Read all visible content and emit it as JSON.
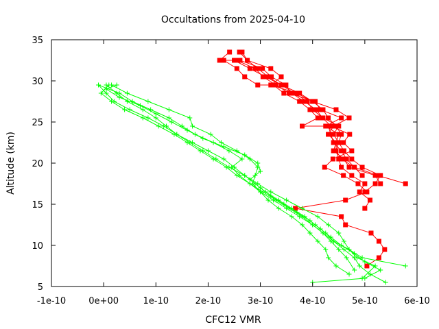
{
  "chart_data": {
    "type": "scatter",
    "title": "Occultations from 2025-04-10",
    "xlabel": "CFC12 VMR",
    "ylabel": "Altitude (km)",
    "xlim": [
      -1e-10,
      6e-10
    ],
    "ylim": [
      5,
      35
    ],
    "xticks": [
      -1e-10,
      0,
      1e-10,
      2e-10,
      3e-10,
      4e-10,
      5e-10,
      6e-10
    ],
    "xtick_labels": [
      "-1e-10",
      "0e+00",
      "1e-10",
      "2e-10",
      "3e-10",
      "4e-10",
      "5e-10",
      "6e-10"
    ],
    "yticks": [
      5,
      10,
      15,
      20,
      25,
      30,
      35
    ],
    "ytick_labels": [
      "5",
      "10",
      "15",
      "20",
      "25",
      "30",
      "35"
    ],
    "grid": false,
    "series": [
      {
        "color": "#ff0000",
        "marker": "square",
        "profiles": [
          [
            [
              5.04e-10,
              7.5
            ],
            [
              5.27e-10,
              8.5
            ],
            [
              5.38e-10,
              9.5
            ],
            [
              5.27e-10,
              10.5
            ],
            [
              5.12e-10,
              11.5
            ],
            [
              4.63e-10,
              12.5
            ],
            [
              4.55e-10,
              13.5
            ],
            [
              3.67e-10,
              14.5
            ],
            [
              4.63e-10,
              15.5
            ],
            [
              5.04e-10,
              16.5
            ],
            [
              4.87e-10,
              17.5
            ],
            [
              4.59e-10,
              18.5
            ],
            [
              4.23e-10,
              19.5
            ],
            [
              4.39e-10,
              20.5
            ],
            [
              4.75e-10,
              21.5
            ],
            [
              4.59e-10,
              22.5
            ],
            [
              4.71e-10,
              23.5
            ],
            [
              4.35e-10,
              24.5
            ],
            [
              4.19e-10,
              25.5
            ],
            [
              4.07e-10,
              26.5
            ],
            [
              3.84e-10,
              27.5
            ],
            [
              3.6e-10,
              28.5
            ],
            [
              3.49e-10,
              29.5
            ],
            [
              3.21e-10,
              30.5
            ],
            [
              3.04e-10,
              31.5
            ],
            [
              2.61e-10,
              32.5
            ],
            [
              2.22e-10,
              32.5
            ],
            [
              2.41e-10,
              33.5
            ]
          ],
          [
            [
              5e-10,
              16.5
            ],
            [
              5.2e-10,
              17.5
            ],
            [
              5.3e-10,
              18.5
            ],
            [
              4.95e-10,
              19.5
            ],
            [
              4.75e-10,
              20.5
            ],
            [
              4.6e-10,
              21.5
            ],
            [
              4.5e-10,
              22.5
            ],
            [
              4.55e-10,
              23.5
            ],
            [
              4.45e-10,
              24.5
            ],
            [
              4.3e-10,
              25.5
            ],
            [
              4.2e-10,
              26.5
            ],
            [
              4e-10,
              27.5
            ],
            [
              3.75e-10,
              28.5
            ],
            [
              3.4e-10,
              29.5
            ],
            [
              3.15e-10,
              30.5
            ],
            [
              2.95e-10,
              31.5
            ],
            [
              2.75e-10,
              32.5
            ],
            [
              2.6e-10,
              33.5
            ]
          ],
          [
            [
              5e-10,
              14.5
            ],
            [
              5.1e-10,
              15.5
            ],
            [
              4.9e-10,
              16.5
            ],
            [
              5e-10,
              17.5
            ],
            [
              4.75e-10,
              18.5
            ],
            [
              4.55e-10,
              19.5
            ],
            [
              4.5e-10,
              20.5
            ],
            [
              4.45e-10,
              21.5
            ],
            [
              4.5e-10,
              22.5
            ],
            [
              4.4e-10,
              23.5
            ],
            [
              4.5e-10,
              24.5
            ],
            [
              4.2e-10,
              25.5
            ],
            [
              4e-10,
              26.5
            ],
            [
              3.9e-10,
              27.5
            ],
            [
              3.65e-10,
              28.5
            ],
            [
              3.4e-10,
              29.5
            ],
            [
              3.1e-10,
              30.5
            ],
            [
              2.8e-10,
              31.5
            ],
            [
              2.5e-10,
              32.5
            ]
          ],
          [
            [
              5.3e-10,
              17.5
            ],
            [
              5.2e-10,
              18.5
            ],
            [
              4.7e-10,
              19.5
            ],
            [
              4.6e-10,
              20.5
            ],
            [
              4.4e-10,
              21.5
            ],
            [
              4.45e-10,
              22.5
            ],
            [
              4.5e-10,
              23.5
            ],
            [
              4.25e-10,
              24.5
            ],
            [
              4.55e-10,
              25.5
            ],
            [
              4.15e-10,
              26.5
            ],
            [
              4.05e-10,
              27.5
            ],
            [
              3.55e-10,
              28.5
            ],
            [
              3.3e-10,
              29.5
            ],
            [
              3.05e-10,
              30.5
            ],
            [
              2.9e-10,
              31.5
            ],
            [
              2.55e-10,
              32.5
            ]
          ],
          [
            [
              5.78e-10,
              17.5
            ],
            [
              5.25e-10,
              18.5
            ],
            [
              4.8e-10,
              19.5
            ],
            [
              4.55e-10,
              20.5
            ],
            [
              4.45e-10,
              21.5
            ],
            [
              4.45e-10,
              22.5
            ],
            [
              4.3e-10,
              23.5
            ],
            [
              4.4e-10,
              24.5
            ],
            [
              4.7e-10,
              25.5
            ],
            [
              4.45e-10,
              26.5
            ],
            [
              4e-10,
              27.5
            ],
            [
              3.7e-10,
              28.5
            ],
            [
              3.2e-10,
              29.5
            ],
            [
              3.4e-10,
              30.5
            ],
            [
              3.2e-10,
              31.5
            ],
            [
              2.75e-10,
              32.5
            ],
            [
              2.65e-10,
              33.5
            ]
          ],
          [
            [
              4.95e-10,
              18.5
            ],
            [
              4.8e-10,
              19.5
            ],
            [
              4.65e-10,
              20.5
            ],
            [
              4.55e-10,
              21.5
            ],
            [
              4.4e-10,
              22.5
            ],
            [
              4.35e-10,
              23.5
            ],
            [
              4.3e-10,
              24.5
            ],
            [
              3.8e-10,
              24.5
            ],
            [
              4.1e-10,
              25.5
            ],
            [
              3.95e-10,
              26.5
            ],
            [
              3.75e-10,
              27.5
            ],
            [
              3.45e-10,
              28.5
            ],
            [
              3.25e-10,
              29.5
            ],
            [
              2.95e-10,
              29.5
            ],
            [
              2.7e-10,
              30.5
            ],
            [
              2.55e-10,
              31.5
            ],
            [
              2.3e-10,
              32.5
            ]
          ]
        ]
      },
      {
        "color": "#00ff00",
        "marker": "plus",
        "profiles": [
          [
            [
              5.78e-10,
              7.5
            ],
            [
              4.95e-10,
              8.5
            ],
            [
              4.7e-10,
              9.5
            ],
            [
              4.6e-10,
              10.5
            ],
            [
              4.5e-10,
              11.5
            ],
            [
              4.3e-10,
              12.5
            ],
            [
              4.1e-10,
              13.5
            ],
            [
              3.8e-10,
              14.5
            ],
            [
              3.5e-10,
              15.5
            ],
            [
              3.2e-10,
              16.5
            ],
            [
              2.95e-10,
              17.5
            ],
            [
              2.7e-10,
              18.5
            ],
            [
              2.4e-10,
              19.5
            ],
            [
              2.15e-10,
              20.5
            ],
            [
              1.9e-10,
              21.5
            ],
            [
              1.65e-10,
              22.5
            ],
            [
              1.4e-10,
              23.5
            ],
            [
              1.15e-10,
              24.5
            ],
            [
              8.5e-11,
              25.5
            ],
            [
              5e-11,
              26.5
            ],
            [
              2e-11,
              27.5
            ],
            [
              5e-12,
              28.5
            ],
            [
              -1e-11,
              29.5
            ]
          ],
          [
            [
              5.4e-10,
              5.5
            ],
            [
              5.1e-10,
              6.5
            ],
            [
              4.9e-10,
              7.5
            ],
            [
              4.8e-10,
              8.5
            ],
            [
              4.6e-10,
              9.5
            ],
            [
              4.4e-10,
              10.5
            ],
            [
              4.2e-10,
              11.5
            ],
            [
              4e-10,
              12.5
            ],
            [
              3.8e-10,
              13.5
            ],
            [
              3.55e-10,
              14.5
            ],
            [
              3.3e-10,
              15.5
            ],
            [
              3.05e-10,
              16.5
            ],
            [
              2.8e-10,
              17.5
            ],
            [
              2.55e-10,
              18.5
            ],
            [
              2.35e-10,
              19.5
            ],
            [
              2.1e-10,
              20.5
            ],
            [
              1.85e-10,
              21.5
            ],
            [
              1.6e-10,
              22.5
            ],
            [
              1.35e-10,
              23.5
            ],
            [
              1.05e-10,
              24.5
            ],
            [
              7.5e-11,
              25.5
            ],
            [
              4e-11,
              26.5
            ],
            [
              1.5e-11,
              27.5
            ],
            [
              -5e-12,
              28.5
            ],
            [
              1e-11,
              29.5
            ]
          ],
          [
            [
              4e-10,
              5.5
            ],
            [
              5e-10,
              6.0
            ],
            [
              5.3e-10,
              7.0
            ],
            [
              5e-10,
              8.0
            ],
            [
              4.8e-10,
              9.0
            ],
            [
              4.55e-10,
              10.0
            ],
            [
              4.35e-10,
              11.0
            ],
            [
              4.15e-10,
              12.0
            ],
            [
              3.95e-10,
              13.0
            ],
            [
              3.7e-10,
              14.0
            ],
            [
              3.45e-10,
              15.0
            ],
            [
              3.2e-10,
              16.0
            ],
            [
              3e-10,
              17.0
            ],
            [
              2.8e-10,
              18.0
            ],
            [
              3e-10,
              19.0
            ],
            [
              2.95e-10,
              20.0
            ],
            [
              2.7e-10,
              21.0
            ],
            [
              2.3e-10,
              22.0
            ],
            [
              1.9e-10,
              23.0
            ],
            [
              1.6e-10,
              24.0
            ],
            [
              1.3e-10,
              25.0
            ],
            [
              1e-10,
              26.0
            ],
            [
              7e-11,
              27.0
            ],
            [
              3e-11,
              28.0
            ],
            [
              5e-12,
              29.0
            ],
            [
              2.5e-11,
              29.5
            ]
          ],
          [
            [
              4.95e-10,
              6.0
            ],
            [
              5.2e-10,
              7.5
            ],
            [
              4.85e-10,
              8.5
            ],
            [
              4.7e-10,
              9.5
            ],
            [
              4.4e-10,
              10.5
            ],
            [
              4.25e-10,
              11.5
            ],
            [
              4.05e-10,
              12.5
            ],
            [
              3.85e-10,
              13.5
            ],
            [
              3.6e-10,
              14.5
            ],
            [
              3.35e-10,
              15.5
            ],
            [
              3.1e-10,
              16.5
            ],
            [
              2.9e-10,
              17.5
            ],
            [
              2.7e-10,
              18.5
            ],
            [
              2.5e-10,
              19.5
            ],
            [
              2.3e-10,
              20.5
            ],
            [
              2e-10,
              21.5
            ],
            [
              1.7e-10,
              22.5
            ],
            [
              1.4e-10,
              23.5
            ],
            [
              1.2e-10,
              24.5
            ],
            [
              1e-10,
              25.5
            ],
            [
              7.5e-11,
              26.5
            ],
            [
              4.5e-11,
              27.5
            ],
            [
              2.5e-11,
              28.5
            ],
            [
              5e-12,
              29.5
            ]
          ],
          [
            [
              4.8e-10,
              7.0
            ],
            [
              4.65e-10,
              8.5
            ],
            [
              4.5e-10,
              9.5
            ],
            [
              4.35e-10,
              10.5
            ],
            [
              4.2e-10,
              11.5
            ],
            [
              4e-10,
              12.5
            ],
            [
              3.75e-10,
              13.5
            ],
            [
              3.5e-10,
              14.5
            ],
            [
              3.25e-10,
              15.5
            ],
            [
              3e-10,
              16.5
            ],
            [
              2.8e-10,
              17.5
            ],
            [
              2.6e-10,
              18.5
            ],
            [
              2.45e-10,
              19.5
            ],
            [
              2.65e-10,
              20.5
            ],
            [
              2.4e-10,
              21.5
            ],
            [
              2.1e-10,
              22.5
            ],
            [
              1.75e-10,
              23.5
            ],
            [
              1.5e-10,
              24.5
            ],
            [
              1.25e-10,
              25.5
            ],
            [
              9e-11,
              26.5
            ],
            [
              5.5e-11,
              27.5
            ],
            [
              3e-11,
              28.5
            ],
            [
              -1e-11,
              29.5
            ]
          ],
          [
            [
              4.7e-10,
              6.5
            ],
            [
              4.45e-10,
              7.5
            ],
            [
              4.3e-10,
              8.5
            ],
            [
              4.25e-10,
              9.5
            ],
            [
              4.1e-10,
              10.5
            ],
            [
              3.95e-10,
              11.5
            ],
            [
              3.8e-10,
              12.5
            ],
            [
              3.6e-10,
              13.5
            ],
            [
              3.35e-10,
              14.5
            ],
            [
              3.15e-10,
              15.5
            ],
            [
              3e-10,
              16.5
            ],
            [
              2.85e-10,
              17.5
            ],
            [
              2.9e-10,
              18.5
            ],
            [
              2.95e-10,
              19.5
            ],
            [
              2.8e-10,
              20.5
            ],
            [
              2.55e-10,
              21.5
            ],
            [
              2.25e-10,
              22.5
            ],
            [
              2.05e-10,
              23.5
            ],
            [
              1.7e-10,
              24.5
            ],
            [
              1.65e-10,
              25.5
            ],
            [
              1.25e-10,
              26.5
            ],
            [
              8.5e-11,
              27.5
            ],
            [
              4.5e-11,
              28.5
            ],
            [
              1.5e-11,
              29.5
            ]
          ]
        ]
      }
    ]
  }
}
